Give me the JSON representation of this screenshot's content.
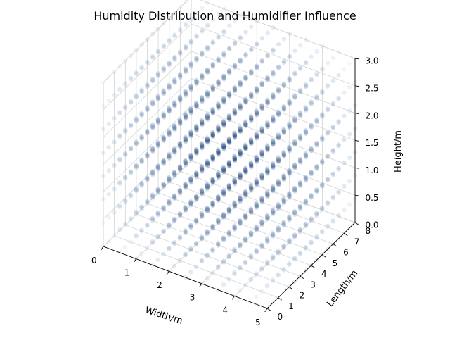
{
  "chart_data": {
    "type": "scatter",
    "projection": "3d",
    "title": "Humidity Distribution and Humidifier Influence",
    "xlabel": "Width/m",
    "ylabel": "Length/m",
    "zlabel": "Height/m",
    "xlim": [
      0,
      5
    ],
    "ylim": [
      0,
      8
    ],
    "zlim": [
      0,
      3
    ],
    "x_ticks": [
      "0",
      "1",
      "2",
      "3",
      "4",
      "5"
    ],
    "y_ticks": [
      "0",
      "1",
      "2",
      "3",
      "4",
      "5",
      "6",
      "7",
      "8"
    ],
    "z_ticks": [
      "0.0",
      "0.5",
      "1.0",
      "1.5",
      "2.0",
      "2.5",
      "3.0"
    ],
    "grid": true,
    "colormap": "Blues",
    "color_low": "#deebf7",
    "color_high": "#08306b",
    "point_grid": {
      "x": {
        "start": 0,
        "stop": 5,
        "count": 11
      },
      "y": {
        "start": 0,
        "stop": 8,
        "count": 17
      },
      "z": {
        "start": 0,
        "stop": 3,
        "count": 8
      }
    },
    "humidity_model": {
      "peak_location": [
        2.5,
        4,
        1.5
      ],
      "description_source": "room volume filled with points, densest near center"
    }
  }
}
